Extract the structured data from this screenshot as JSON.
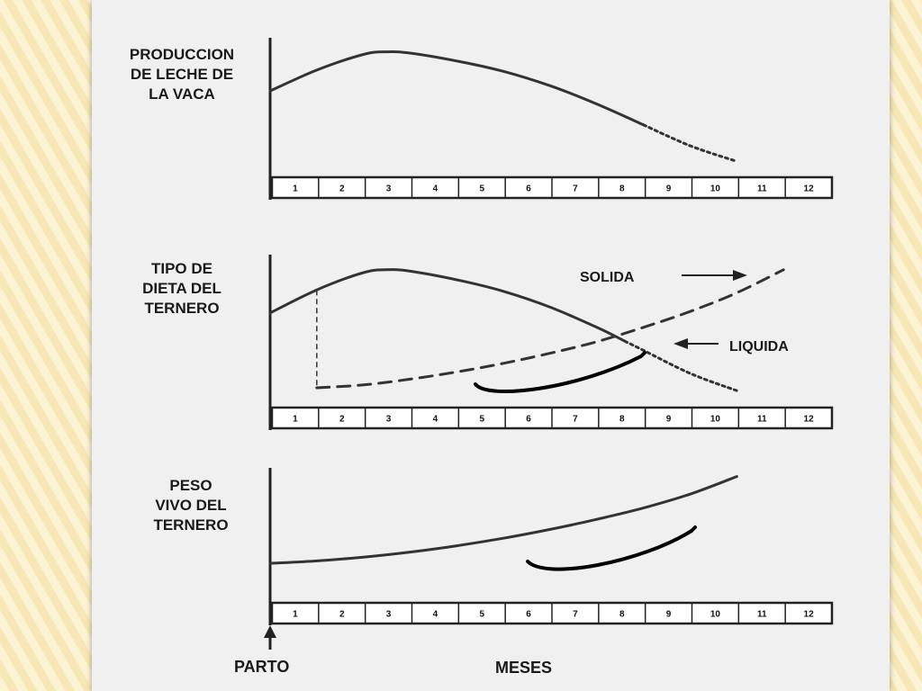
{
  "chart_data": [
    {
      "type": "line",
      "ylabel_lines": [
        "PRODUCCION",
        "DE LECHE DE",
        "LA VACA"
      ],
      "categories": [
        "1",
        "2",
        "3",
        "4",
        "5",
        "6",
        "7",
        "8",
        "9",
        "10",
        "11",
        "12"
      ],
      "series": [
        {
          "style": "solid-then-dotted",
          "x": [
            0,
            1,
            2,
            2.5,
            3,
            4,
            5,
            6,
            7,
            8,
            9,
            10
          ],
          "y": [
            0.62,
            0.78,
            0.9,
            0.92,
            0.91,
            0.85,
            0.77,
            0.66,
            0.52,
            0.36,
            0.2,
            0.08
          ],
          "dotted_from_x": 8
        }
      ]
    },
    {
      "type": "line",
      "ylabel_lines": [
        "TIPO DE",
        "DIETA DEL",
        "TERNERO"
      ],
      "categories": [
        "1",
        "2",
        "3",
        "4",
        "5",
        "6",
        "7",
        "8",
        "9",
        "10",
        "11",
        "12"
      ],
      "series": [
        {
          "name": "LIQUIDA",
          "style": "solid-then-dotted",
          "x": [
            0,
            1,
            2,
            2.5,
            3,
            4,
            5,
            6,
            7,
            8,
            9,
            10
          ],
          "y": [
            0.62,
            0.78,
            0.9,
            0.92,
            0.91,
            0.85,
            0.77,
            0.66,
            0.52,
            0.36,
            0.2,
            0.08
          ],
          "dotted_from_x": 7.6
        },
        {
          "name": "SOLIDA",
          "style": "dashed",
          "x": [
            1,
            2,
            3,
            4,
            5,
            6,
            7,
            8,
            9,
            10,
            11
          ],
          "y": [
            0.1,
            0.12,
            0.16,
            0.21,
            0.27,
            0.34,
            0.42,
            0.52,
            0.63,
            0.76,
            0.92
          ]
        }
      ],
      "annotations": [
        "SOLIDA",
        "LIQUIDA"
      ]
    },
    {
      "type": "line",
      "ylabel_lines": [
        "PESO",
        "VIVO DEL",
        "TERNERO"
      ],
      "categories": [
        "1",
        "2",
        "3",
        "4",
        "5",
        "6",
        "7",
        "8",
        "9",
        "10",
        "11",
        "12"
      ],
      "series": [
        {
          "style": "solid",
          "x": [
            0,
            1,
            2,
            3,
            4,
            5,
            6,
            7,
            8,
            9,
            10
          ],
          "y": [
            0.27,
            0.29,
            0.32,
            0.36,
            0.41,
            0.47,
            0.54,
            0.62,
            0.71,
            0.82,
            0.96
          ]
        }
      ]
    }
  ],
  "xlabel": "MESES",
  "start_label": "PARTO"
}
